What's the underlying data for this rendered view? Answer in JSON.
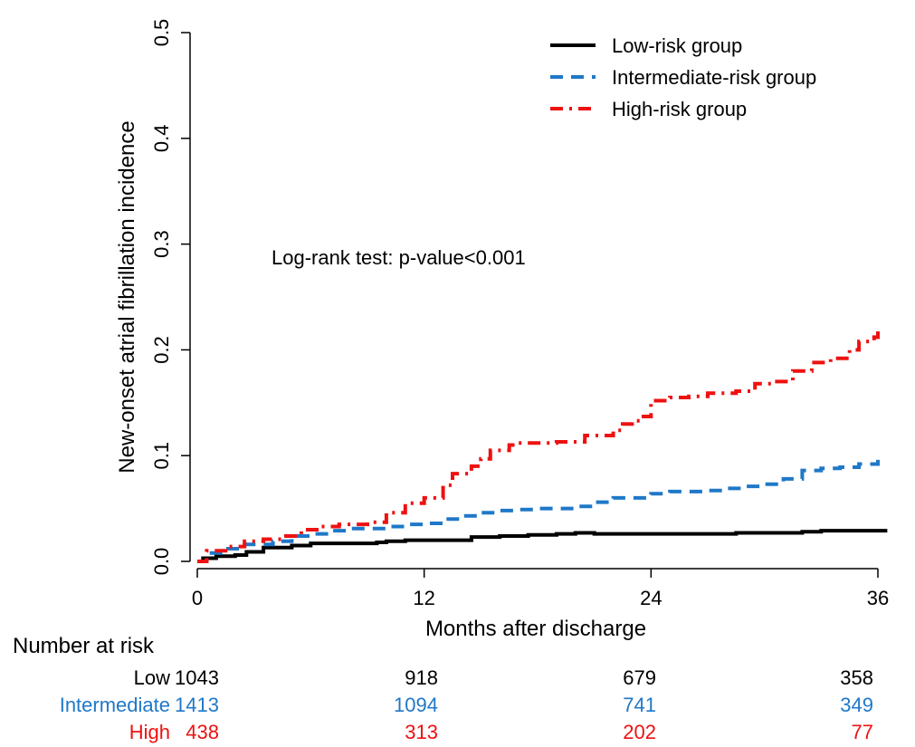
{
  "chart_data": {
    "type": "line",
    "xlabel": "Months after discharge",
    "ylabel": "New-onset atrial fibrillation incidence",
    "x_ticks": [
      "0",
      "12",
      "24",
      "36"
    ],
    "y_ticks": [
      "0.0",
      "0.1",
      "0.2",
      "0.3",
      "0.4",
      "0.5"
    ],
    "xlim": [
      0,
      36
    ],
    "ylim": [
      0,
      0.5
    ],
    "grid": false,
    "legend_position": "top-right",
    "annotation": "Log-rank test: p-value<0.001",
    "series": [
      {
        "name": "Low-risk group",
        "color": "#000000",
        "line_style": "solid",
        "points": [
          [
            0,
            0
          ],
          [
            0.3,
            0.003
          ],
          [
            1,
            0.005
          ],
          [
            2,
            0.006
          ],
          [
            2.6,
            0.009
          ],
          [
            3.5,
            0.013
          ],
          [
            5,
            0.015
          ],
          [
            6,
            0.017
          ],
          [
            8,
            0.017
          ],
          [
            9.5,
            0.018
          ],
          [
            10,
            0.019
          ],
          [
            11,
            0.02
          ],
          [
            13,
            0.02
          ],
          [
            14.5,
            0.023
          ],
          [
            16,
            0.024
          ],
          [
            17.5,
            0.025
          ],
          [
            19,
            0.026
          ],
          [
            20,
            0.027
          ],
          [
            21,
            0.026
          ],
          [
            23,
            0.026
          ],
          [
            25,
            0.026
          ],
          [
            27,
            0.026
          ],
          [
            28.5,
            0.027
          ],
          [
            30,
            0.027
          ],
          [
            31,
            0.027
          ],
          [
            32,
            0.028
          ],
          [
            33,
            0.029
          ],
          [
            36.5,
            0.029
          ]
        ]
      },
      {
        "name": "Intermediate-risk group",
        "color": "#1f78c8",
        "line_style": "dashed",
        "points": [
          [
            0,
            0
          ],
          [
            0.5,
            0.008
          ],
          [
            1.5,
            0.012
          ],
          [
            2.5,
            0.016
          ],
          [
            4,
            0.019
          ],
          [
            5,
            0.024
          ],
          [
            6,
            0.026
          ],
          [
            7,
            0.029
          ],
          [
            8,
            0.031
          ],
          [
            10,
            0.033
          ],
          [
            11,
            0.035
          ],
          [
            12,
            0.036
          ],
          [
            13,
            0.04
          ],
          [
            14,
            0.043
          ],
          [
            15,
            0.046
          ],
          [
            16,
            0.048
          ],
          [
            17,
            0.049
          ],
          [
            18,
            0.05
          ],
          [
            20,
            0.052
          ],
          [
            21,
            0.056
          ],
          [
            22,
            0.06
          ],
          [
            24,
            0.064
          ],
          [
            25,
            0.066
          ],
          [
            26,
            0.066
          ],
          [
            27,
            0.067
          ],
          [
            28,
            0.069
          ],
          [
            29,
            0.071
          ],
          [
            30,
            0.073
          ],
          [
            31,
            0.078
          ],
          [
            32,
            0.086
          ],
          [
            33,
            0.088
          ],
          [
            34,
            0.089
          ],
          [
            35,
            0.092
          ],
          [
            36,
            0.096
          ]
        ]
      },
      {
        "name": "High-risk group",
        "color": "#ee1111",
        "line_style": "dashdot",
        "points": [
          [
            0,
            0
          ],
          [
            0.5,
            0.01
          ],
          [
            1.5,
            0.014
          ],
          [
            2.5,
            0.019
          ],
          [
            3.5,
            0.021
          ],
          [
            4.5,
            0.024
          ],
          [
            5.5,
            0.03
          ],
          [
            6.5,
            0.033
          ],
          [
            7.5,
            0.035
          ],
          [
            9,
            0.037
          ],
          [
            10,
            0.046
          ],
          [
            11,
            0.055
          ],
          [
            12,
            0.06
          ],
          [
            13,
            0.072
          ],
          [
            13.5,
            0.083
          ],
          [
            14.5,
            0.09
          ],
          [
            15,
            0.097
          ],
          [
            15.5,
            0.105
          ],
          [
            16.5,
            0.11
          ],
          [
            17,
            0.112
          ],
          [
            19,
            0.113
          ],
          [
            20.5,
            0.119
          ],
          [
            22,
            0.124
          ],
          [
            22.5,
            0.13
          ],
          [
            23,
            0.133
          ],
          [
            23.5,
            0.137
          ],
          [
            24,
            0.152
          ],
          [
            25,
            0.155
          ],
          [
            26,
            0.156
          ],
          [
            27,
            0.159
          ],
          [
            28.5,
            0.161
          ],
          [
            29.5,
            0.168
          ],
          [
            30.5,
            0.17
          ],
          [
            31.5,
            0.18
          ],
          [
            32.5,
            0.188
          ],
          [
            33.5,
            0.192
          ],
          [
            34.5,
            0.2
          ],
          [
            35,
            0.208
          ],
          [
            35.8,
            0.212
          ],
          [
            36,
            0.219
          ]
        ]
      }
    ]
  },
  "risk_table": {
    "title": "Number at risk",
    "rows": [
      {
        "label": "Low",
        "color": "#000000",
        "values": [
          "1043",
          "918",
          "679",
          "358"
        ]
      },
      {
        "label": "Intermediate",
        "color": "#1f78c8",
        "values": [
          "1413",
          "1094",
          "741",
          "349"
        ]
      },
      {
        "label": "High",
        "color": "#ee1111",
        "values": [
          "438",
          "313",
          "202",
          "77"
        ]
      }
    ]
  }
}
